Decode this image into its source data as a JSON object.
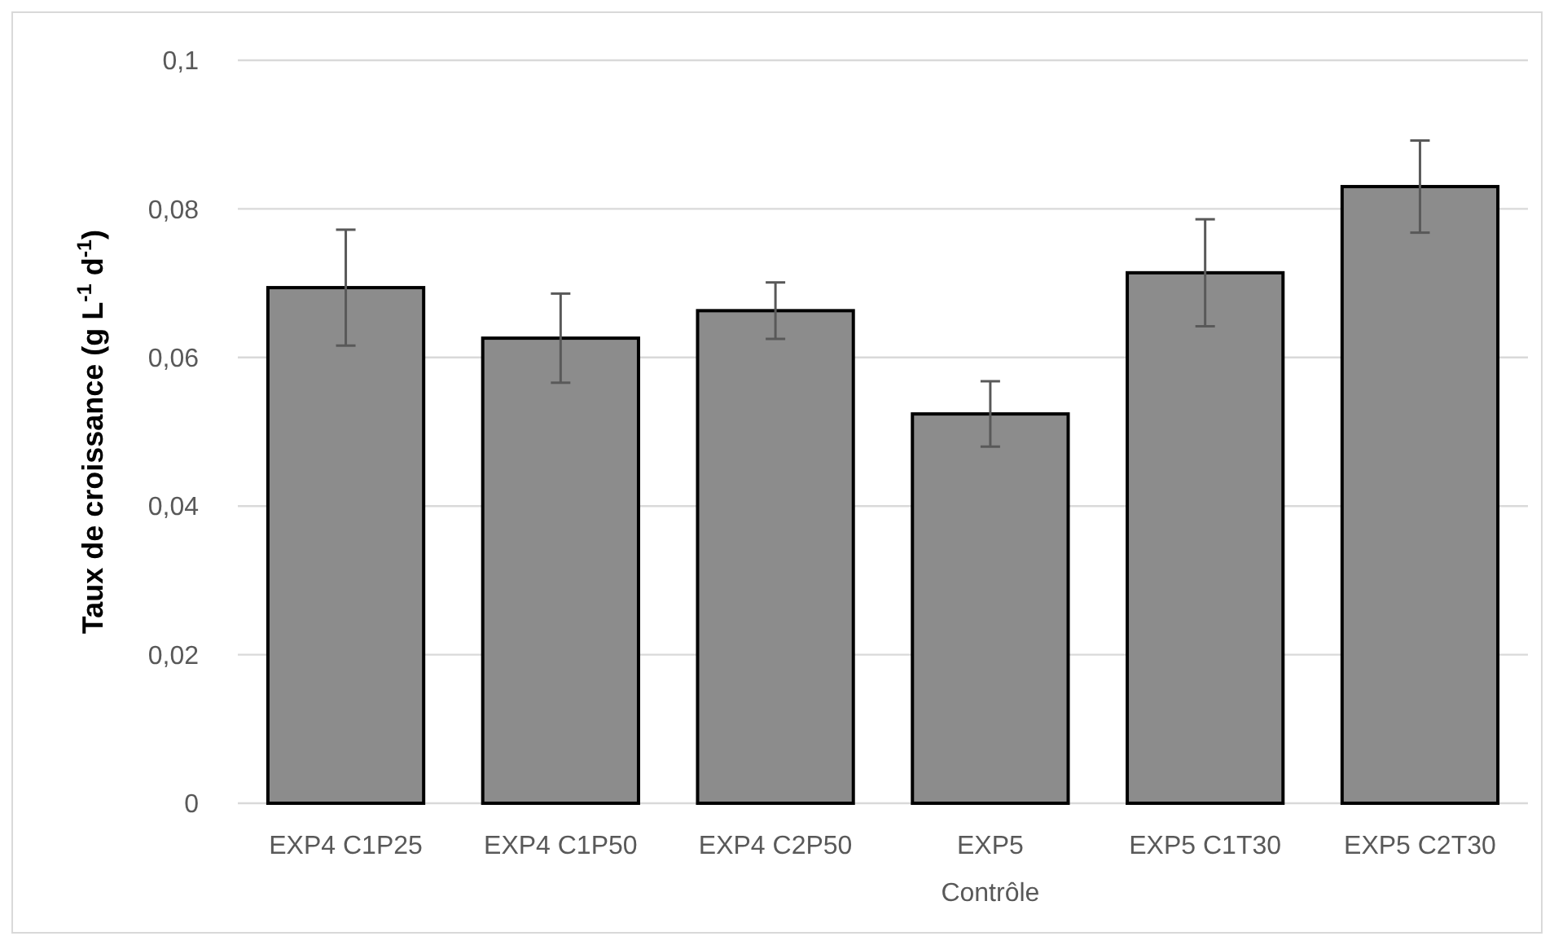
{
  "chart_data": {
    "type": "bar",
    "ylabel": "Taux de croissance (g L$^{-1}$ d$^{-1}$)",
    "categories": [
      "EXP4 C1P25",
      "EXP4 C1P50",
      "EXP4 C2P50",
      "EXP5 Contrôle",
      "EXP5 C1T30",
      "EXP5 C2T30"
    ],
    "values": [
      0.0694,
      0.0626,
      0.0663,
      0.0524,
      0.0714,
      0.083
    ],
    "errors": [
      0.0078,
      0.006,
      0.0038,
      0.0044,
      0.0072,
      0.0062
    ],
    "color": "#8c8c8c",
    "ylim": [
      0,
      0.1
    ],
    "yticks": [
      {
        "value": 0,
        "label": "0"
      },
      {
        "value": 0.02,
        "label": "0,02"
      },
      {
        "value": 0.04,
        "label": "0,04"
      },
      {
        "value": 0.06,
        "label": "0,06"
      },
      {
        "value": 0.08,
        "label": "0,08"
      },
      {
        "value": 0.1,
        "label": "0,1"
      }
    ],
    "grid": "y"
  }
}
